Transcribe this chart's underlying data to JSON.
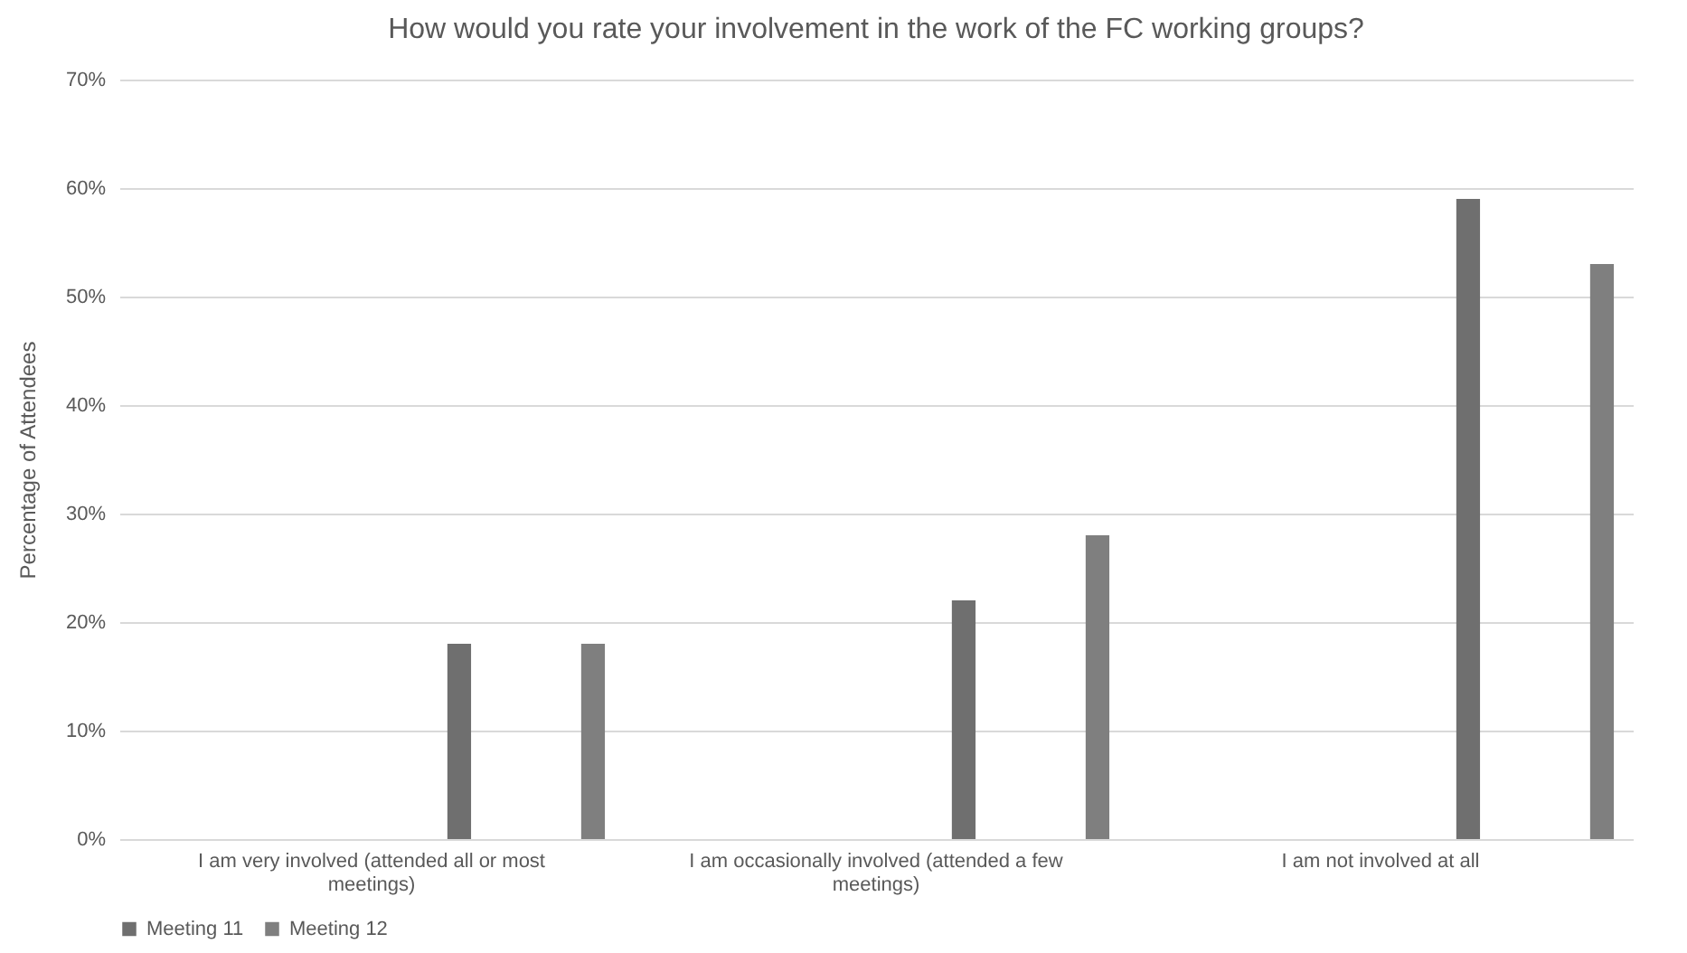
{
  "chart_data": {
    "type": "bar",
    "title": "How would you rate your involvement in the work of the FC working groups?",
    "ylabel": "Percentage of Attendees",
    "categories": [
      "I am very involved (attended all or most meetings)",
      "I am occasionally involved (attended a few meetings)",
      "I am not involved at all"
    ],
    "series": [
      {
        "name": "Meeting 11",
        "color": "#6f6f6f",
        "values": [
          18,
          22,
          59
        ]
      },
      {
        "name": "Meeting 12",
        "color": "#7f7f7f",
        "values": [
          18,
          28,
          53
        ]
      }
    ],
    "ylim": [
      0,
      70
    ],
    "yticks": [
      {
        "value": 0,
        "label": "0%"
      },
      {
        "value": 10,
        "label": "10%"
      },
      {
        "value": 20,
        "label": "20%"
      },
      {
        "value": 30,
        "label": "30%"
      },
      {
        "value": 40,
        "label": "40%"
      },
      {
        "value": 50,
        "label": "50%"
      },
      {
        "value": 60,
        "label": "60%"
      },
      {
        "value": 70,
        "label": "70%"
      }
    ],
    "grid": "y",
    "legend": "bottom"
  }
}
